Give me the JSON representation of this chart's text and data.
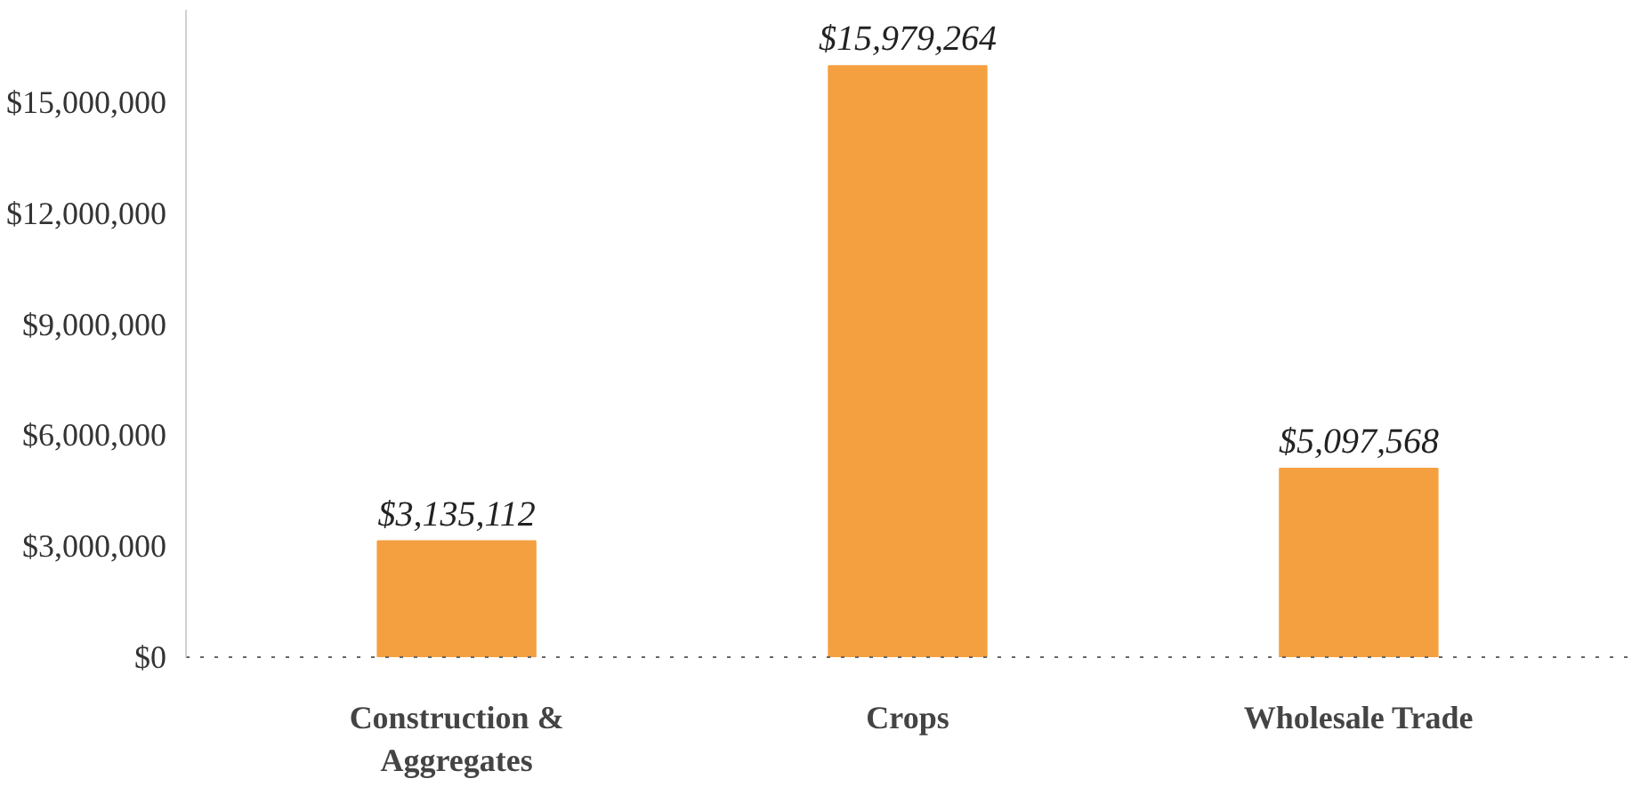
{
  "chart_data": {
    "type": "bar",
    "categories": [
      "Construction & Aggregates",
      "Crops",
      "Wholesale Trade"
    ],
    "values": [
      3135112,
      15979264,
      5097568
    ],
    "color": "#f5a040",
    "value_labels": [
      "$3,135,112",
      "$15,979,264",
      "$5,097,568"
    ],
    "ylim": [
      0,
      17500000
    ],
    "yticks": [
      {
        "value": 0,
        "label": "$0"
      },
      {
        "value": 3000000,
        "label": "$3,000,000"
      },
      {
        "value": 6000000,
        "label": "$6,000,000"
      },
      {
        "value": 9000000,
        "label": "$9,000,000"
      },
      {
        "value": 12000000,
        "label": "$12,000,000"
      },
      {
        "value": 15000000,
        "label": "$15,000,000"
      }
    ],
    "grid": false
  }
}
